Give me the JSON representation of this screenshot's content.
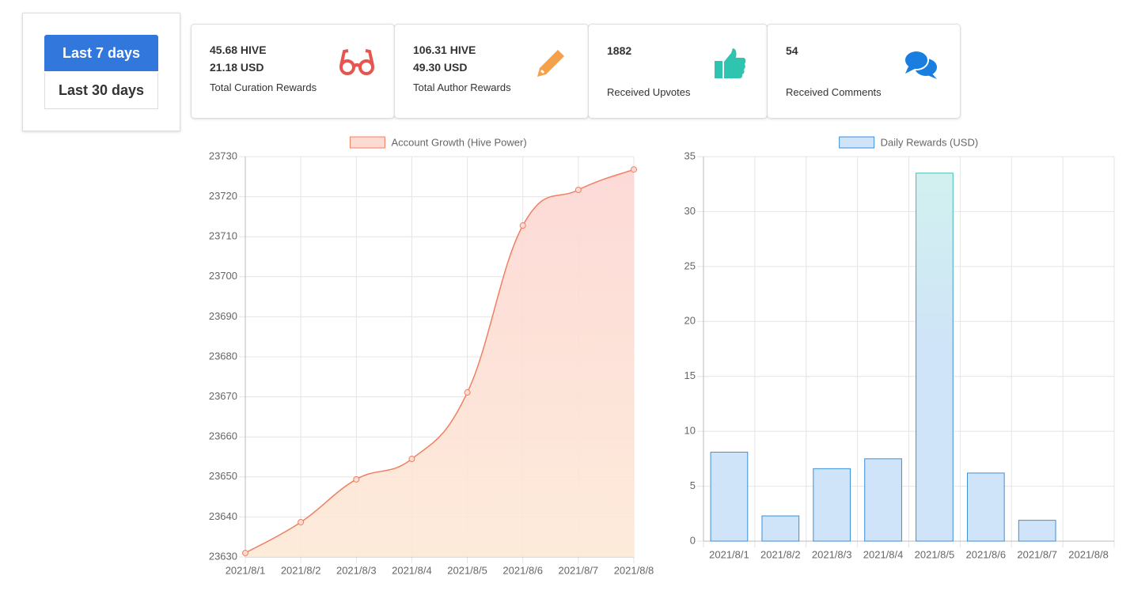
{
  "buttons": [
    "Last 7 days",
    "Last 30 days"
  ],
  "cards": [
    {
      "lines": [
        "45.68 HIVE",
        "21.18 USD"
      ],
      "label": "Total Curation Rewards"
    },
    {
      "lines": [
        "106.31 HIVE",
        "49.30 USD"
      ],
      "label": "Total Author Rewards"
    },
    {
      "lines": [
        1882
      ],
      "label": "Received Upvotes"
    },
    {
      "lines": [
        54
      ],
      "label": "Received Comments"
    }
  ],
  "chart_data": [
    {
      "type": "line",
      "categories": [
        "2021/8/1",
        "2021/8/2",
        "2021/8/3",
        "2021/8/4",
        "2021/8/5",
        "2021/8/6",
        "2021/8/7",
        "2021/8/8"
      ],
      "series": [
        {
          "name": "Account Growth (Hive Power)",
          "color": "#f07f62",
          "fill": "#fddbd3",
          "values": [
            23631,
            23638.7,
            23649.4,
            23654.5,
            23671.1,
            23712.8,
            23721.7,
            23726.8
          ]
        }
      ],
      "ylim": [
        23630,
        23730
      ],
      "yticks": [
        23630,
        23640,
        23650,
        23660,
        23670,
        23680,
        23690,
        23700,
        23710,
        23720,
        23730
      ],
      "grid": true
    },
    {
      "type": "bar",
      "categories": [
        "2021/8/1",
        "2021/8/2",
        "2021/8/3",
        "2021/8/4",
        "2021/8/5",
        "2021/8/6",
        "2021/8/7",
        "2021/8/8"
      ],
      "series": [
        {
          "name": "Daily Rewards (USD)",
          "color": "#3b8fd8",
          "fill": "#cfe4f8",
          "values": [
            8.1,
            2.3,
            6.6,
            7.5,
            33.5,
            6.2,
            1.9,
            0
          ]
        }
      ],
      "ylim": [
        0,
        35
      ],
      "yticks": [
        0,
        5,
        10,
        15,
        20,
        25,
        30,
        35
      ],
      "grid": true
    }
  ]
}
